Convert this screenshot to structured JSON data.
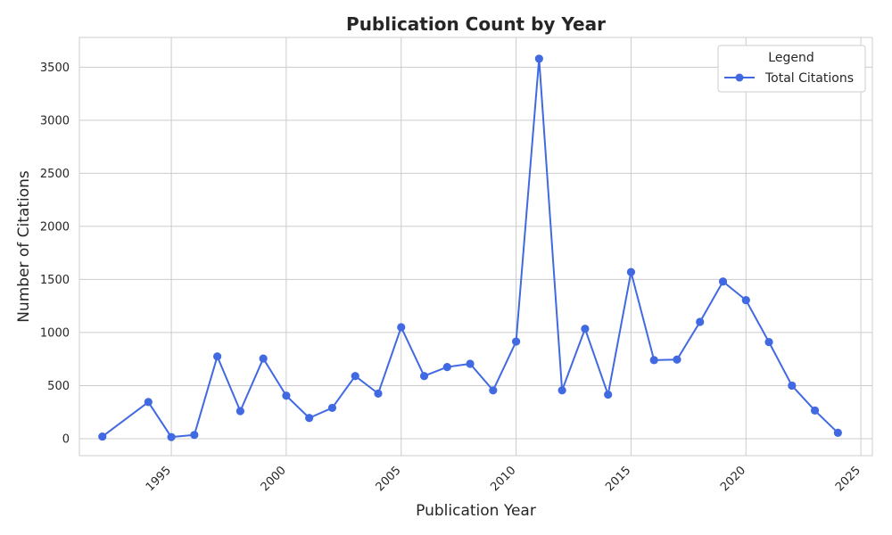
{
  "chart_data": {
    "type": "line",
    "title": "Publication Count by Year",
    "xlabel": "Publication Year",
    "ylabel": "Number of Citations",
    "xlim": [
      1991,
      2025.5
    ],
    "ylim": [
      -160,
      3780
    ],
    "xticks": [
      1995,
      2000,
      2005,
      2010,
      2015,
      2020,
      2025
    ],
    "yticks": [
      0,
      500,
      1000,
      1500,
      2000,
      2500,
      3000,
      3500
    ],
    "grid": true,
    "legend": {
      "title": "Legend",
      "placement": "top-right"
    },
    "colors": {
      "series": "#4169e1",
      "grid": "#cccccc",
      "text": "#262626"
    },
    "series": [
      {
        "name": "Total Citations",
        "marker": "circle",
        "x": [
          1992,
          1994,
          1995,
          1996,
          1997,
          1998,
          1999,
          2000,
          2001,
          2002,
          2003,
          2004,
          2005,
          2006,
          2007,
          2008,
          2009,
          2010,
          2011,
          2012,
          2013,
          2014,
          2015,
          2016,
          2017,
          2018,
          2019,
          2020,
          2021,
          2022,
          2023,
          2024
        ],
        "y": [
          20,
          345,
          15,
          35,
          775,
          260,
          755,
          405,
          195,
          290,
          590,
          425,
          1050,
          590,
          675,
          705,
          455,
          915,
          3580,
          455,
          1035,
          415,
          1570,
          740,
          745,
          1100,
          1480,
          1305,
          910,
          500,
          265,
          55
        ]
      }
    ]
  }
}
